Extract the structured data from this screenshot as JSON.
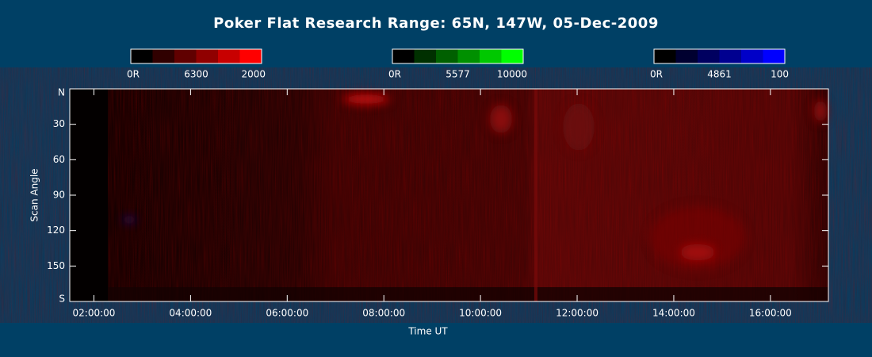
{
  "chart_data": {
    "type": "heatmap",
    "title": "Poker Flat Research Range: 65N, 147W, 05-Dec-2009",
    "xlabel": "Time UT",
    "ylabel": "Scan Angle",
    "xlim": [
      1.5,
      17.2
    ],
    "xticks": [
      {
        "value": 2,
        "label": "02:00:00"
      },
      {
        "value": 4,
        "label": "04:00:00"
      },
      {
        "value": 6,
        "label": "06:00:00"
      },
      {
        "value": 8,
        "label": "08:00:00"
      },
      {
        "value": 10,
        "label": "10:00:00"
      },
      {
        "value": 12,
        "label": "12:00:00"
      },
      {
        "value": 14,
        "label": "14:00:00"
      },
      {
        "value": 16,
        "label": "16:00:00"
      }
    ],
    "ylim": [
      0,
      180
    ],
    "yticks": [
      {
        "value": 0,
        "label": "N"
      },
      30,
      60,
      90,
      120,
      150,
      {
        "value": 180,
        "label": "S"
      }
    ],
    "colorbars": [
      {
        "labels": [
          "0R",
          "6300",
          "2000"
        ],
        "colors": [
          "#000000",
          "#300000",
          "#600000",
          "#900000",
          "#c80000",
          "#ff0000"
        ]
      },
      {
        "labels": [
          "0R",
          "5577",
          "10000"
        ],
        "colors": [
          "#000000",
          "#003000",
          "#006000",
          "#009000",
          "#00c800",
          "#00ff00"
        ]
      },
      {
        "labels": [
          "0R",
          "4861",
          "100"
        ],
        "colors": [
          "#000000",
          "#000030",
          "#000060",
          "#000090",
          "#0000c8",
          "#0000ff"
        ]
      }
    ]
  }
}
